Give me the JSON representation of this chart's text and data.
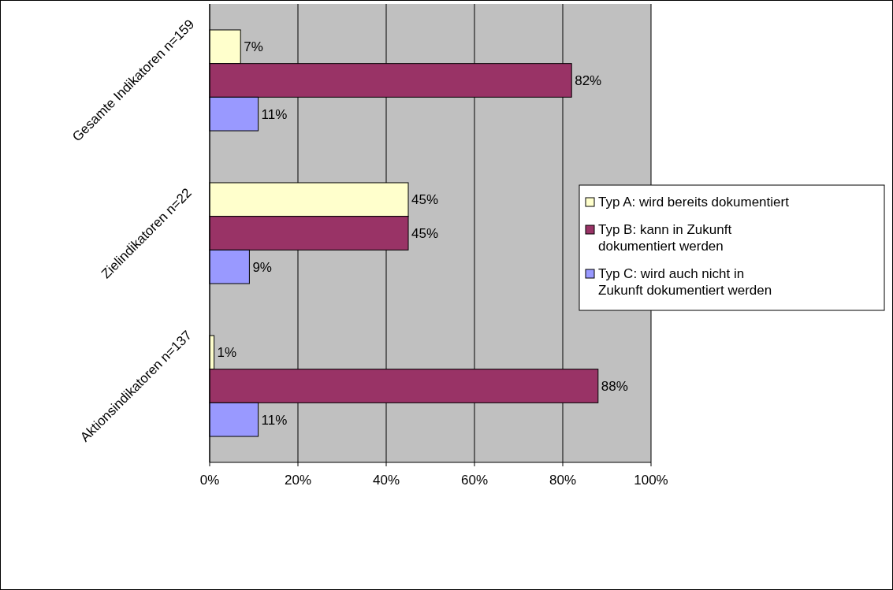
{
  "chart_data": {
    "type": "bar",
    "orientation": "horizontal",
    "categories": [
      "Gesamte Indikatoren n=159",
      "Zielindikatoren n=22",
      "Aktionsindikatoren n=137"
    ],
    "series": [
      {
        "name": "Typ A: wird bereits dokumentiert",
        "color": "#ffffcc",
        "values": [
          7,
          45,
          1
        ],
        "value_labels": [
          "7%",
          "45%",
          "1%"
        ]
      },
      {
        "name": "Typ B: kann in Zukunft dokumentiert werden",
        "color": "#993366",
        "values": [
          82,
          45,
          88
        ],
        "value_labels": [
          "82%",
          "45%",
          "88%"
        ]
      },
      {
        "name": "Typ C: wird auch nicht in Zukunft dokumentiert werden",
        "color": "#9999ff",
        "values": [
          11,
          9,
          11
        ],
        "value_labels": [
          "11%",
          "9%",
          "11%"
        ]
      }
    ],
    "xlim": [
      0,
      100
    ],
    "xticks": [
      {
        "value": 0,
        "label": "0%"
      },
      {
        "value": 20,
        "label": "20%"
      },
      {
        "value": 40,
        "label": "40%"
      },
      {
        "value": 60,
        "label": "60%"
      },
      {
        "value": 80,
        "label": "80%"
      },
      {
        "value": 100,
        "label": "100%"
      }
    ],
    "grid": "x",
    "legend": "right"
  }
}
